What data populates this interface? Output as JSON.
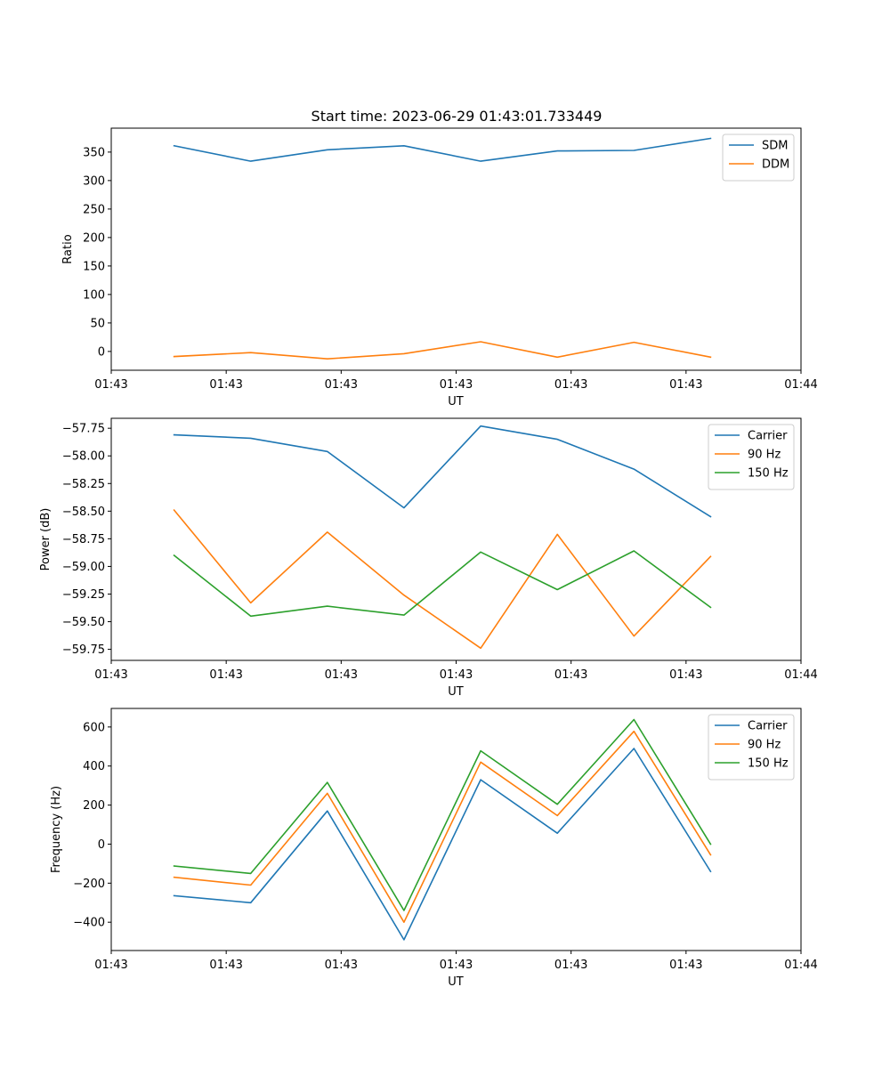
{
  "figure": {
    "title": "Start time: 2023-06-29 01:43:01.733449"
  },
  "chart_data": [
    {
      "type": "line",
      "title": "",
      "xlabel": "UT",
      "ylabel": "Ratio",
      "x": [
        1,
        2,
        3,
        4,
        5,
        6,
        7,
        8
      ],
      "xlim": [
        0.18,
        9.18
      ],
      "xticks": [
        0.18,
        1.68,
        3.18,
        4.68,
        6.18,
        7.68,
        9.18
      ],
      "xtick_labels": [
        "01:43",
        "01:43",
        "01:43",
        "01:43",
        "01:43",
        "01:43",
        "01:44"
      ],
      "ylim": [
        -33,
        392
      ],
      "yticks": [
        0,
        50,
        100,
        150,
        200,
        250,
        300,
        350
      ],
      "ytick_labels": [
        "0",
        "50",
        "100",
        "150",
        "200",
        "250",
        "300",
        "350"
      ],
      "legend_position": "top-right",
      "series": [
        {
          "name": "SDM",
          "color": "#1f77b4",
          "values": [
            361,
            334,
            354,
            361,
            334,
            352,
            353,
            374
          ]
        },
        {
          "name": "DDM",
          "color": "#ff7f0e",
          "values": [
            -9,
            -2,
            -13,
            -4,
            17,
            -10,
            16,
            -10
          ]
        }
      ]
    },
    {
      "type": "line",
      "title": "",
      "xlabel": "UT",
      "ylabel": "Power (dB)",
      "x": [
        1,
        2,
        3,
        4,
        5,
        6,
        7,
        8
      ],
      "xlim": [
        0.18,
        9.18
      ],
      "xticks": [
        0.18,
        1.68,
        3.18,
        4.68,
        6.18,
        7.68,
        9.18
      ],
      "xtick_labels": [
        "01:43",
        "01:43",
        "01:43",
        "01:43",
        "01:43",
        "01:43",
        "01:44"
      ],
      "ylim": [
        -59.85,
        -57.66
      ],
      "yticks": [
        -57.75,
        -58.0,
        -58.25,
        -58.5,
        -58.75,
        -59.0,
        -59.25,
        -59.5,
        -59.75
      ],
      "ytick_labels": [
        "−57.75",
        "−58.00",
        "−58.25",
        "−58.50",
        "−58.75",
        "−59.00",
        "−59.25",
        "−59.50",
        "−59.75"
      ],
      "legend_position": "top-right",
      "series": [
        {
          "name": "Carrier",
          "color": "#1f77b4",
          "values": [
            -57.81,
            -57.84,
            -57.96,
            -58.47,
            -57.73,
            -57.85,
            -58.12,
            -58.55
          ]
        },
        {
          "name": "90 Hz",
          "color": "#ff7f0e",
          "values": [
            -58.49,
            -59.33,
            -58.69,
            -59.26,
            -59.74,
            -58.71,
            -59.63,
            -58.91
          ]
        },
        {
          "name": "150 Hz",
          "color": "#2ca02c",
          "values": [
            -58.9,
            -59.45,
            -59.36,
            -59.44,
            -58.87,
            -59.21,
            -58.86,
            -59.37
          ]
        }
      ]
    },
    {
      "type": "line",
      "title": "",
      "xlabel": "UT",
      "ylabel": "Frequency (Hz)",
      "x": [
        1,
        2,
        3,
        4,
        5,
        6,
        7,
        8
      ],
      "xlim": [
        0.18,
        9.18
      ],
      "xticks": [
        0.18,
        1.68,
        3.18,
        4.68,
        6.18,
        7.68,
        9.18
      ],
      "xtick_labels": [
        "01:43",
        "01:43",
        "01:43",
        "01:43",
        "01:43",
        "01:43",
        "01:44"
      ],
      "ylim": [
        -545,
        695
      ],
      "yticks": [
        -400,
        -200,
        0,
        200,
        400,
        600
      ],
      "ytick_labels": [
        "−400",
        "−200",
        "0",
        "200",
        "400",
        "600"
      ],
      "legend_position": "top-right",
      "series": [
        {
          "name": "Carrier",
          "color": "#1f77b4",
          "values": [
            -264,
            -300,
            170,
            -490,
            330,
            56,
            490,
            -140
          ]
        },
        {
          "name": "90 Hz",
          "color": "#ff7f0e",
          "values": [
            -170,
            -210,
            260,
            -400,
            420,
            146,
            578,
            -55
          ]
        },
        {
          "name": "150 Hz",
          "color": "#2ca02c",
          "values": [
            -112,
            -150,
            316,
            -340,
            478,
            204,
            638,
            0
          ]
        }
      ]
    }
  ]
}
